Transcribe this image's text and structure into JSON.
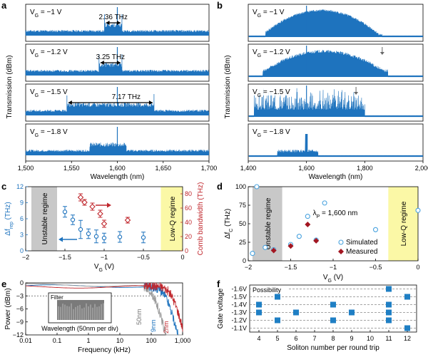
{
  "panels": {
    "a": "a",
    "b": "b",
    "c": "c",
    "d": "d",
    "e": "e",
    "f": "f"
  },
  "colors": {
    "spectrum": "#1e73be",
    "comb_red": "#c0272d",
    "gray_region": "#c8c8c8",
    "yellow_region": "#fbf8a6",
    "open_marker": "#4aa3df",
    "diamond": "#a31621",
    "square": "#1f7fc4"
  },
  "chart_data": [
    {
      "id": "a",
      "type": "line",
      "xlabel": "Wavelength (nm)",
      "ylabel": "Transmission (dBm)",
      "xlim": [
        1500,
        1700
      ],
      "xticks": [
        1500,
        1550,
        1600,
        1650,
        1700
      ],
      "xtick_labels": [
        "1,500",
        "1,550",
        "1,600",
        "1,650",
        "1,700"
      ],
      "rows": [
        {
          "vg": "V_G = −1 V",
          "annotation": "2.36 THz",
          "span": [
            1586,
            1605
          ],
          "center": 1600
        },
        {
          "vg": "V_G = −1.2 V",
          "annotation": "3.25 THz",
          "span": [
            1580,
            1605
          ],
          "center": 1600
        },
        {
          "vg": "V_G = −1.5 V",
          "annotation": "7.17 THz",
          "span": [
            1545,
            1640
          ],
          "center": 1600
        },
        {
          "vg": "V_G = −1.8 V",
          "annotation": "",
          "span": [],
          "center": 1600
        }
      ]
    },
    {
      "id": "b",
      "type": "line",
      "xlabel": "Wavelength (nm)",
      "ylabel": "Transmission (dBm)",
      "xlim": [
        1400,
        2000
      ],
      "xticks": [
        1400,
        1600,
        1800,
        2000
      ],
      "xtick_labels": [
        "1,400",
        "1,600",
        "1,800",
        "2,000"
      ],
      "rows": [
        {
          "vg": "V_G = −1 V",
          "arrow_at": null
        },
        {
          "vg": "V_G = −1.2 V",
          "arrow_at": 1860
        },
        {
          "vg": "V_G = −1.5 V",
          "arrow_at": 1770
        },
        {
          "vg": "V_G = −1.8 V",
          "arrow_at": null
        }
      ]
    },
    {
      "id": "c",
      "type": "scatter",
      "xlabel": "V_G (V)",
      "ylabel_left": "Δf_rep (THz)",
      "ylabel_right": "Comb bandwidth (THz)",
      "xlim": [
        -2,
        0
      ],
      "xticks": [
        -2,
        -1.5,
        -1,
        -0.5,
        0
      ],
      "xtick_labels": [
        "−2",
        "−1.5",
        "−1",
        "−0.5",
        "0"
      ],
      "ylim_left": [
        0,
        12
      ],
      "yticks_left": [
        0,
        3,
        6,
        9,
        12
      ],
      "ylim_right": [
        0,
        90
      ],
      "yticks_right": [
        0,
        20,
        40,
        60,
        80
      ],
      "regions": [
        {
          "label": "Unstable regime",
          "x": [
            -2,
            -1.6
          ]
        },
        {
          "label": "Low-Q regime",
          "x": [
            -0.35,
            0
          ]
        }
      ],
      "series": [
        {
          "name": "Δf_rep",
          "axis": "left",
          "x": [
            -1.5,
            -1.4,
            -1.3,
            -1.2,
            -1.1,
            -1.0,
            -0.8,
            -0.5
          ],
          "y": [
            7.3,
            5.8,
            4.0,
            3.2,
            2.7,
            2.4,
            2.6,
            2.5
          ],
          "err": [
            1.0,
            0.9,
            1.7,
            0.9,
            1.2,
            0.9,
            1.0,
            1.0
          ]
        },
        {
          "name": "Comb bandwidth",
          "axis": "right",
          "x": [
            -1.3,
            -1.25,
            -1.15,
            -1.05,
            -1.0,
            -0.7
          ],
          "y": [
            75,
            68,
            62,
            52,
            38,
            43
          ],
          "err": [
            5,
            4,
            5,
            5,
            5,
            4
          ]
        }
      ]
    },
    {
      "id": "d",
      "type": "scatter",
      "xlabel": "V_G (V)",
      "ylabel": "Δf_C (THz)",
      "xlim": [
        -2,
        0
      ],
      "xticks": [
        -2,
        -1.5,
        -1,
        -0.5,
        0
      ],
      "xtick_labels": [
        "−2",
        "−1.5",
        "−1",
        "−0.5",
        "0"
      ],
      "ylim": [
        0,
        100
      ],
      "yticks": [
        0,
        25,
        50,
        75,
        100
      ],
      "regions": [
        {
          "label": "Unstable regime",
          "x": [
            -1.95,
            -1.6
          ]
        },
        {
          "label": "Low-Q regime",
          "x": [
            -0.35,
            0
          ]
        }
      ],
      "annotation": "λ_P = 1,600 nm",
      "series": [
        {
          "name": "Simulated",
          "marker": "circle",
          "x": [
            -1.95,
            -1.9,
            -1.8,
            -1.7,
            -1.5,
            -1.4,
            -1.3,
            -1.2,
            -1.1,
            -0.5,
            0
          ],
          "y": [
            10,
            100,
            18,
            15,
            22,
            33,
            60,
            28,
            78,
            42,
            68
          ]
        },
        {
          "name": "Measured",
          "marker": "diamond",
          "x": [
            -1.7,
            -1.5,
            -1.3,
            -1.2
          ],
          "y": [
            14,
            20,
            49,
            27
          ]
        }
      ]
    },
    {
      "id": "e",
      "type": "line",
      "xlabel": "Frequency (kHz)",
      "ylabel": "Power (dBm)",
      "xscale": "log",
      "xlim": [
        0.01,
        1000
      ],
      "xticks": [
        0.01,
        0.1,
        1,
        10,
        100,
        1000
      ],
      "xtick_labels": [
        "0.01",
        "0.1",
        "1",
        "10",
        "100",
        "1,000"
      ],
      "ylim": [
        -12,
        0
      ],
      "yticks": [
        0,
        -3,
        -6,
        -9,
        -12
      ],
      "dashed_level": -3,
      "inset": {
        "label": "Filter",
        "xlabel": "Wavelength (50nm per div)"
      },
      "series": [
        {
          "name": "9nm",
          "color": "#1e73be",
          "cutoff": 300
        },
        {
          "name": "50nm",
          "color": "#9b9b9b",
          "cutoff": 120
        },
        {
          "name": "2nm",
          "color": "#c0272d",
          "cutoff": 500
        }
      ]
    },
    {
      "id": "f",
      "type": "scatter",
      "title": "Possibility",
      "xlabel": "Soliton number per round trip",
      "ylabel": "Gate voltage",
      "xticks": [
        4,
        5,
        6,
        7,
        8,
        9,
        10,
        11,
        12
      ],
      "xtick_labels": [
        "4",
        "5",
        "6",
        "7",
        "8",
        "9",
        "10",
        "11",
        "12"
      ],
      "yticks": [
        -1.6,
        -1.5,
        -1.4,
        -1.3,
        -1.2,
        -1.1
      ],
      "ytick_labels": [
        "-1.6V",
        "-1.5V",
        "-1.4V",
        "-1.3V",
        "-1.2V",
        "-1.1V"
      ],
      "points": [
        {
          "x": 4,
          "y": -1.4
        },
        {
          "x": 4,
          "y": -1.3
        },
        {
          "x": 5,
          "y": -1.5
        },
        {
          "x": 5,
          "y": -1.2
        },
        {
          "x": 6,
          "y": -1.3
        },
        {
          "x": 8,
          "y": -1.4
        },
        {
          "x": 8,
          "y": -1.2
        },
        {
          "x": 9,
          "y": -1.3
        },
        {
          "x": 11,
          "y": -1.6
        },
        {
          "x": 11,
          "y": -1.4
        },
        {
          "x": 11,
          "y": -1.3
        },
        {
          "x": 11,
          "y": -1.2
        },
        {
          "x": 12,
          "y": -1.5
        },
        {
          "x": 12,
          "y": -1.1
        }
      ]
    }
  ]
}
